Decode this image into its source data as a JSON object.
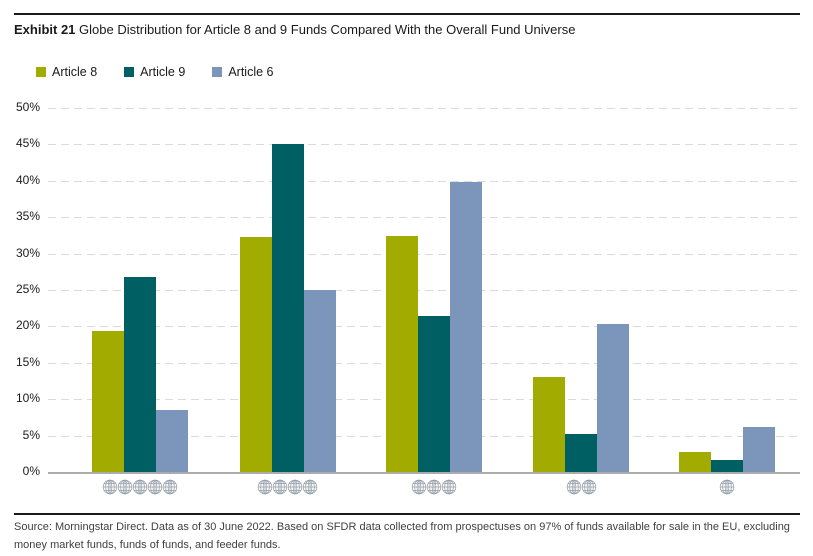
{
  "header": {
    "exhibit_label": "Exhibit 21",
    "title": "Globe Distribution for Article 8 and 9 Funds Compared With the Overall Fund Universe"
  },
  "chart_data": {
    "type": "bar",
    "title": "Globe Distribution for Article 8 and 9 Funds Compared With the Overall Fund Universe",
    "categories": [
      "5 globes",
      "4 globes",
      "3 globes",
      "2 globes",
      "1 globe"
    ],
    "globe_counts": [
      5,
      4,
      3,
      2,
      1
    ],
    "series": [
      {
        "name": "Article 8",
        "color": "#A2AB00",
        "values": [
          19.3,
          32.3,
          32.4,
          13.0,
          2.8
        ]
      },
      {
        "name": "Article 9",
        "color": "#005F63",
        "values": [
          26.8,
          45.0,
          21.4,
          5.2,
          1.6
        ]
      },
      {
        "name": "Article 6",
        "color": "#7C95BA",
        "values": [
          8.5,
          25.0,
          39.8,
          20.3,
          6.2
        ]
      }
    ],
    "xlabel": "",
    "ylabel": "",
    "ylim": [
      0,
      50
    ],
    "ytick_step": 5,
    "yticks": [
      "0%",
      "5%",
      "10%",
      "15%",
      "20%",
      "25%",
      "30%",
      "35%",
      "40%",
      "45%",
      "50%"
    ],
    "grid": "horizontal-dashed",
    "legend_position": "top-left"
  },
  "footer": {
    "source": "Source: Morningstar Direct. Data as of 30 June 2022. Based on SFDR data collected from prospectuses on 97% of funds available for sale in the EU, excluding money market funds, funds of funds, and feeder funds."
  },
  "colors": {
    "rule": "#1A1A1A",
    "gridline": "#DADADA",
    "axis": "#ACACAC",
    "globe_icon": "#9AA2AB",
    "title_text": "#1A1A1A",
    "source_text": "#404040"
  }
}
